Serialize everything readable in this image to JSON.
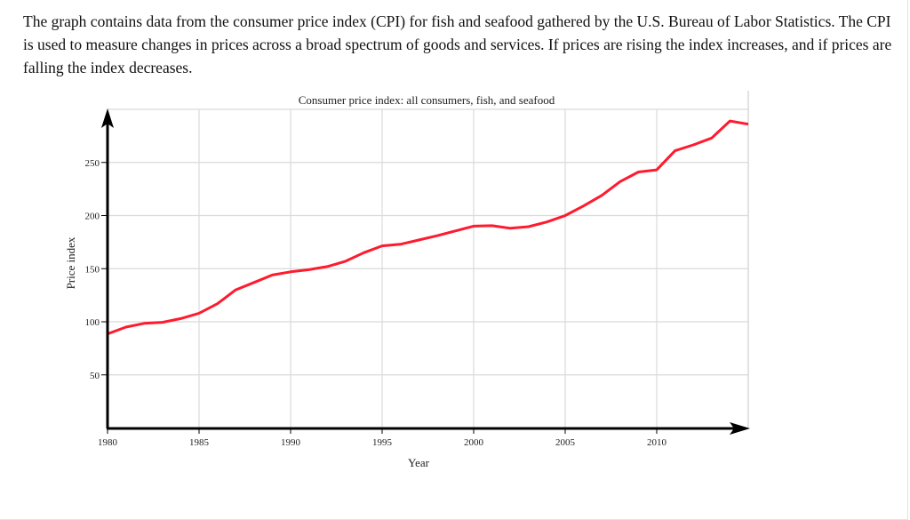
{
  "intro_text": "The graph contains data from the consumer price index (CPI) for fish and seafood gathered by the U.S. Bureau of Labor Statistics. The CPI is used to measure changes in prices across a broad spectrum of goods and services. If prices are rising the index increases, and if prices are falling the index decreases.",
  "chart_data": {
    "type": "line",
    "title": "Consumer price index: all consumers, fish, and seafood",
    "xlabel": "Year",
    "ylabel": "Price index",
    "xlim": [
      1980,
      2015
    ],
    "ylim": [
      0,
      300
    ],
    "xticks": [
      1980,
      1985,
      1990,
      1995,
      2000,
      2005,
      2010
    ],
    "yticks": [
      50,
      100,
      150,
      200,
      250
    ],
    "grid": true,
    "line_color": "#ff1a2e",
    "x": [
      1980,
      1981,
      1982,
      1983,
      1984,
      1985,
      1986,
      1987,
      1988,
      1989,
      1990,
      1991,
      1992,
      1993,
      1994,
      1995,
      1996,
      1997,
      1998,
      1999,
      2000,
      2001,
      2002,
      2003,
      2004,
      2005,
      2006,
      2007,
      2008,
      2009,
      2010,
      2011,
      2012,
      2013,
      2014,
      2015
    ],
    "values": [
      88.5,
      95,
      98.5,
      99.5,
      103,
      108,
      117,
      130,
      137,
      144,
      147,
      149,
      152,
      157,
      165,
      171.5,
      173,
      177,
      181,
      185.5,
      190,
      190.5,
      188,
      189.5,
      194,
      200,
      209,
      219,
      232,
      241,
      243,
      261,
      266.5,
      273,
      289,
      286
    ]
  }
}
